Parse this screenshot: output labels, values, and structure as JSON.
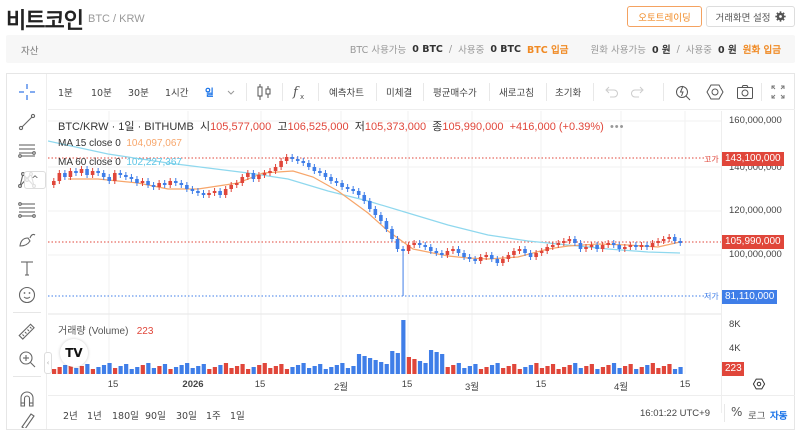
{
  "header": {
    "title": "비트코인",
    "pair": "BTC / KRW",
    "auto_trading_button": "오토트레이딩",
    "screen_settings_button": "거래화면 설정"
  },
  "assets": {
    "label": "자산",
    "btc_available_label": "BTC 사용가능",
    "btc_available_value": "0 BTC",
    "slash": "/",
    "in_use_label": "사용중",
    "btc_in_use_value": "0 BTC",
    "btc_deposit": "BTC 입금",
    "krw_available_label": "원화 사용가능",
    "krw_available_value": "0 원",
    "krw_in_use_value": "0 원",
    "krw_deposit": "원화 입금"
  },
  "toolbar": {
    "intervals": [
      "1분",
      "10분",
      "30분",
      "1시간",
      "일"
    ],
    "active_interval": "일",
    "forecast_chart": "예측차트",
    "unfilled": "미체결",
    "avg_buy_price": "평균매수가",
    "refresh": "새로고침",
    "reset": "초기화"
  },
  "legend": {
    "symbol": "BTC/KRW · 1일 · BITHUMB",
    "open_label": "시",
    "open": "105,577,000",
    "high_label": "고",
    "high": "106,525,000",
    "low_label": "저",
    "low": "105,373,000",
    "close_label": "종",
    "close": "105,990,000",
    "change": "+416,000 (+0.39%)",
    "more": "•••",
    "ma15_label": "MA 15 close 0",
    "ma15_value": "104,097,067",
    "ma60_label": "MA 60 close 0",
    "ma60_value": "102,227,367",
    "volume_label": "거래량 (Volume)",
    "volume_value": "223"
  },
  "price_axis": {
    "ticks": [
      "160,000,000",
      "140,000,000",
      "120,000,000",
      "100,000,000"
    ],
    "high_marker_label": "고가",
    "high_marker_value": "143,100,000",
    "current_value": "105,990,000",
    "low_marker_label": "저가",
    "low_marker_value": "81,110,000"
  },
  "volume_axis": {
    "ticks": [
      "8K",
      "4K"
    ],
    "current_value": "223"
  },
  "time_axis": {
    "ticks": [
      "15",
      "2026",
      "15",
      "2월",
      "15",
      "3월",
      "15",
      "4월",
      "15"
    ]
  },
  "range_buttons": [
    "2년",
    "1년",
    "180일",
    "90일",
    "30일",
    "1주",
    "1일"
  ],
  "status": {
    "time": "16:01:22 UTC+9",
    "percent": "%",
    "log": "로그",
    "auto": "자동"
  },
  "colors": {
    "up": "#e0463a",
    "down": "#3f7ee8",
    "ma15": "#f7a66b",
    "ma60": "#8fd8ee",
    "accent_orange": "#f08a24",
    "accent_blue": "#1a73e8"
  }
}
